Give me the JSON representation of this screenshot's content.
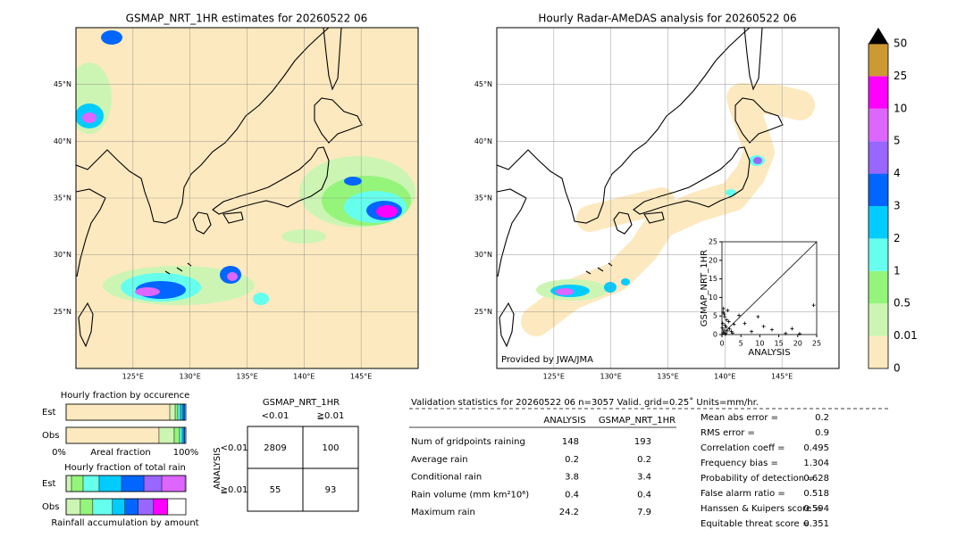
{
  "maps": [
    {
      "title": "GSMAP_NRT_1HR estimates for 20260522 06",
      "xlim": [
        120,
        150
      ],
      "ylim": [
        20,
        50
      ],
      "xticks": [
        {
          "value": 125,
          "label": "125°E"
        },
        {
          "value": 130,
          "label": "130°E"
        },
        {
          "value": 135,
          "label": "135°E"
        },
        {
          "value": 140,
          "label": "140°E"
        },
        {
          "value": 145,
          "label": "145°E"
        }
      ],
      "yticks": [
        {
          "value": 25,
          "label": "25°N"
        },
        {
          "value": 30,
          "label": "30°N"
        },
        {
          "value": 35,
          "label": "35°N"
        },
        {
          "value": 40,
          "label": "40°N"
        },
        {
          "value": 45,
          "label": "45°N"
        }
      ]
    },
    {
      "title": "Hourly Radar-AMeDAS analysis for 20260522 06",
      "xlim": [
        120,
        150
      ],
      "ylim": [
        20,
        50
      ],
      "xticks": [
        {
          "value": 125,
          "label": "125°E"
        },
        {
          "value": 130,
          "label": "130°E"
        },
        {
          "value": 135,
          "label": "135°E"
        },
        {
          "value": 140,
          "label": "140°E"
        },
        {
          "value": 145,
          "label": "145°E"
        }
      ],
      "yticks": [
        {
          "value": 25,
          "label": "25°N"
        },
        {
          "value": 30,
          "label": "30°N"
        },
        {
          "value": 35,
          "label": "35°N"
        },
        {
          "value": 40,
          "label": "40°N"
        },
        {
          "value": 45,
          "label": "45°N"
        }
      ],
      "credit": "Provided by JWA/JMA"
    }
  ],
  "colorbar": {
    "levels": [
      0,
      0.01,
      0.5,
      1,
      2,
      3,
      4,
      5,
      10,
      25,
      50
    ],
    "colors": [
      "#fde9bf",
      "#ccf5b3",
      "#94f57a",
      "#66ffee",
      "#00ccff",
      "#0066ff",
      "#9966ff",
      "#dd66ff",
      "#ff00ff",
      "#cc9933"
    ],
    "over_color": "#000000"
  },
  "chart_data": [
    {
      "type": "scatter",
      "xlabel": "ANALYSIS",
      "ylabel": "GSMAP_NRT_1HR",
      "xlim": [
        0,
        25
      ],
      "ylim": [
        0,
        25
      ],
      "xticks": [
        0,
        5,
        10,
        15,
        20,
        25
      ],
      "yticks": [
        0,
        5,
        10,
        15,
        20,
        25
      ],
      "color": "#000000",
      "x": [
        0.3,
        0.5,
        0.8,
        1.0,
        1.2,
        1.5,
        0.2,
        0.6,
        2.0,
        2.5,
        3.2,
        0.4,
        1.8,
        0.9,
        0.1,
        0.7,
        1.1,
        2.8,
        4.5,
        6.0,
        7.8,
        9.5,
        11.0,
        13.2,
        16.8,
        18.5,
        20.5,
        24.2,
        1.4,
        0.3
      ],
      "y": [
        0.5,
        1.2,
        2.5,
        0.3,
        4.0,
        6.5,
        3.0,
        5.5,
        1.5,
        0.8,
        2.8,
        7.0,
        3.5,
        0.1,
        1.8,
        4.8,
        2.0,
        0.4,
        5.2,
        3.0,
        0.8,
        4.8,
        2.2,
        1.3,
        0.3,
        1.6,
        0.2,
        7.9,
        1.0,
        6.0
      ]
    },
    {
      "type": "stacked_bar",
      "title": "Hourly fraction by occurence",
      "categories": [
        "Est",
        "Obs"
      ],
      "xlabel": "Areal fraction",
      "xlim": [
        0,
        100
      ],
      "xticks": [
        {
          "value": 0,
          "label": "0%"
        },
        {
          "value": 100,
          "label": "100%"
        }
      ],
      "series": [
        {
          "color": "#fde9bf",
          "values": [
            86.6,
            77.6
          ]
        },
        {
          "color": "#ccf5b3",
          "values": [
            4.5,
            12.7
          ]
        },
        {
          "color": "#94f57a",
          "values": [
            2.2,
            4.5
          ]
        },
        {
          "color": "#66ffee",
          "values": [
            2.2,
            2.2
          ]
        },
        {
          "color": "#00ccff",
          "values": [
            2.2,
            1.5
          ]
        },
        {
          "color": "#0066ff",
          "values": [
            1.5,
            0.7
          ]
        }
      ]
    },
    {
      "type": "stacked_bar",
      "title": "Hourly fraction of total rain",
      "categories": [
        "Est",
        "Obs"
      ],
      "xlabel": "Rainfall accumulation by amount",
      "xlim": [
        0,
        100
      ],
      "series": [
        {
          "color": "#ccf5b3",
          "values": [
            4.5,
            11.9
          ]
        },
        {
          "color": "#94f57a",
          "values": [
            9.7,
            10.4
          ]
        },
        {
          "color": "#66ffee",
          "values": [
            13.4,
            16.4
          ]
        },
        {
          "color": "#00ccff",
          "values": [
            18.7,
            10.4
          ]
        },
        {
          "color": "#0066ff",
          "values": [
            18.7,
            11.2
          ]
        },
        {
          "color": "#9966ff",
          "values": [
            14.9,
            12.7
          ]
        },
        {
          "color": "#dd66ff",
          "values": [
            19.4,
            0
          ]
        },
        {
          "color": "#ff00ff",
          "values": [
            0,
            11.9
          ]
        }
      ]
    }
  ],
  "contingency": {
    "header": "GSMAP_NRT_1HR",
    "columns": [
      "<0.01",
      "≧0.01"
    ],
    "row_header": "ANALYSIS",
    "rows": [
      "<0.01",
      "≧0.01"
    ],
    "cells": [
      [
        2809,
        100
      ],
      [
        55,
        93
      ]
    ]
  },
  "stats": {
    "title": "Validation statistics for 20260522 06  n=3057 Valid. grid=0.25˚ Units=mm/hr.",
    "columns": [
      "ANALYSIS",
      "GSMAP_NRT_1HR"
    ],
    "rows": [
      {
        "label": "Num of gridpoints raining",
        "values": [
          148,
          193
        ]
      },
      {
        "label": "Average rain",
        "values": [
          0.2,
          0.2
        ]
      },
      {
        "label": "Conditional rain",
        "values": [
          3.8,
          3.4
        ]
      },
      {
        "label": "Rain volume (mm km²10⁶)",
        "values": [
          0.4,
          0.4
        ]
      },
      {
        "label": "Maximum rain",
        "values": [
          24.2,
          7.9
        ]
      }
    ],
    "scores": [
      {
        "label": "Mean abs error =",
        "value": 0.2
      },
      {
        "label": "RMS error =",
        "value": 0.9
      },
      {
        "label": "Correlation coeff =",
        "value": 0.495
      },
      {
        "label": "Frequency bias =",
        "value": 1.304
      },
      {
        "label": "Probability of detection =",
        "value": 0.628
      },
      {
        "label": "False alarm ratio =",
        "value": 0.518
      },
      {
        "label": "Hanssen & Kuipers score =",
        "value": 0.594
      },
      {
        "label": "Equitable threat score =",
        "value": 0.351
      }
    ]
  }
}
